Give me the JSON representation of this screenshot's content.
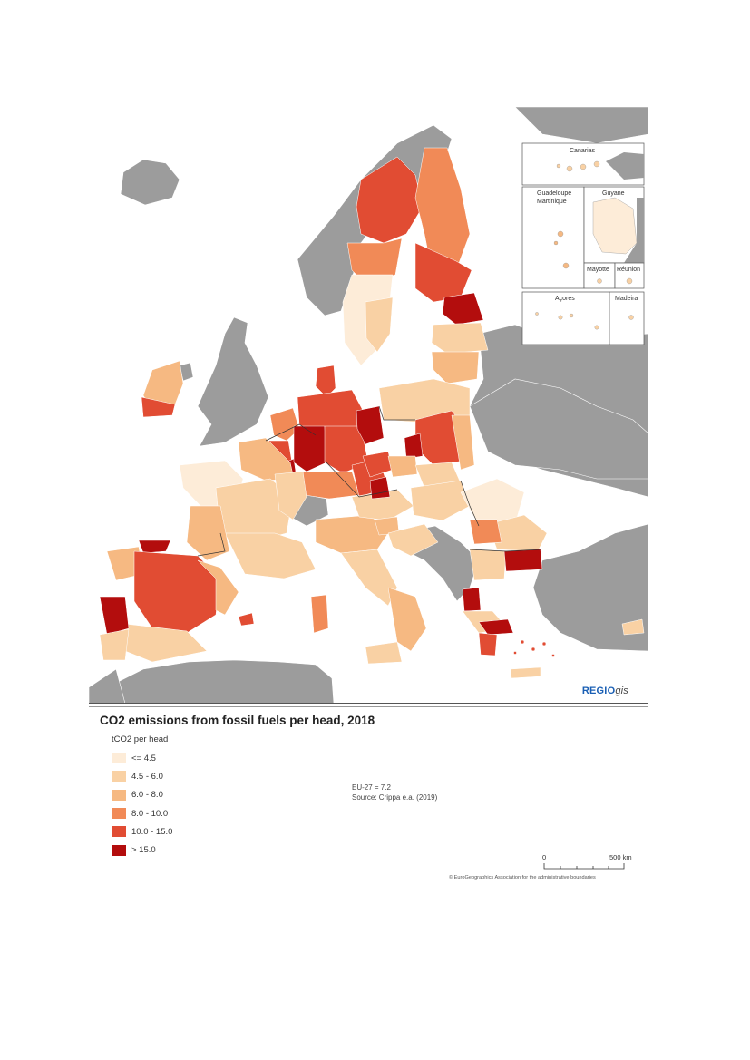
{
  "map": {
    "title": "CO2 emissions from fossil fuels per head, 2018",
    "legend_title": "tCO2 per head",
    "legend": [
      {
        "label": "<= 4.5",
        "color": "#fdecd8"
      },
      {
        "label": "4.5 - 6.0",
        "color": "#f9d1a4"
      },
      {
        "label": "6.0 - 8.0",
        "color": "#f6b982"
      },
      {
        "label": "8.0 - 10.0",
        "color": "#f18a57"
      },
      {
        "label": "10.0 - 15.0",
        "color": "#e14c33"
      },
      {
        "label": "> 15.0",
        "color": "#b30d0d"
      }
    ],
    "eu_average": "EU-27 = 7.2",
    "source": "Source: Crippa e.a. (2019)",
    "brand_main": "REGIO",
    "brand_sub": "gis",
    "scale": {
      "start": "0",
      "end": "500 km"
    },
    "copyright": "© EuroGeographics Association for the administrative boundaries",
    "insets": {
      "canarias": "Canarias",
      "guadeloupe": "Guadeloupe",
      "martinique": "Martinique",
      "guyane": "Guyane",
      "mayotte": "Mayotte",
      "reunion": "Réunion",
      "acores": "Açores",
      "madeira": "Madeira"
    },
    "non_eu_color": "#9c9c9c",
    "sea_color": "#ffffff"
  }
}
